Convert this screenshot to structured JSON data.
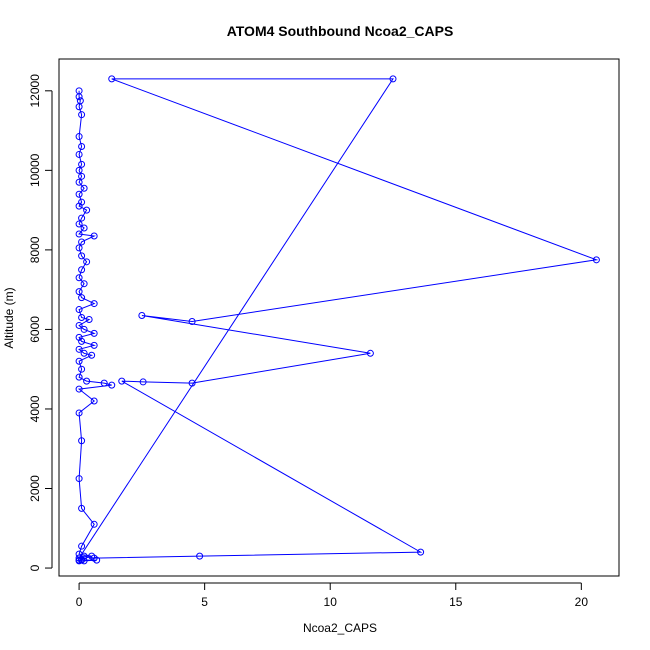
{
  "chart_data": {
    "type": "line",
    "title": "ATOM4 Southbound Ncoa2_CAPS",
    "xlabel": "Ncoa2_CAPS",
    "ylabel": "Altitude (m)",
    "xlim": [
      -0.8,
      21.5
    ],
    "ylim": [
      -200,
      12800
    ],
    "x_ticks": [
      0,
      5,
      10,
      15,
      20
    ],
    "y_ticks": [
      0,
      2000,
      4000,
      6000,
      8000,
      10000,
      12000
    ],
    "grid": false,
    "marker": "open-circle",
    "color": "#0000ff",
    "series": [
      {
        "points": [
          [
            0.0,
            12000
          ],
          [
            0.0,
            11850
          ],
          [
            0.05,
            11750
          ],
          [
            0.0,
            11600
          ],
          [
            0.1,
            11400
          ],
          [
            0.0,
            10850
          ],
          [
            0.1,
            10600
          ],
          [
            0.0,
            10400
          ],
          [
            0.1,
            10150
          ],
          [
            0.0,
            10000
          ],
          [
            0.1,
            9850
          ],
          [
            0.0,
            9700
          ],
          [
            0.2,
            9550
          ],
          [
            0.0,
            9400
          ],
          [
            0.1,
            9200
          ],
          [
            0.0,
            9100
          ],
          [
            0.3,
            9000
          ],
          [
            0.1,
            8800
          ],
          [
            0.0,
            8650
          ],
          [
            0.2,
            8550
          ],
          [
            0.0,
            8400
          ],
          [
            0.6,
            8350
          ],
          [
            0.1,
            8200
          ],
          [
            0.0,
            8050
          ],
          [
            0.1,
            7850
          ],
          [
            0.3,
            7700
          ],
          [
            0.1,
            7500
          ],
          [
            0.0,
            7300
          ],
          [
            0.2,
            7150
          ],
          [
            0.0,
            6950
          ],
          [
            0.1,
            6800
          ],
          [
            0.6,
            6650
          ],
          [
            0.0,
            6500
          ],
          [
            0.1,
            6300
          ],
          [
            0.4,
            6250
          ],
          [
            0.0,
            6100
          ],
          [
            0.2,
            6000
          ],
          [
            0.6,
            5900
          ],
          [
            0.0,
            5800
          ],
          [
            0.1,
            5700
          ],
          [
            0.6,
            5600
          ],
          [
            0.0,
            5500
          ],
          [
            0.2,
            5400
          ],
          [
            0.5,
            5350
          ],
          [
            0.0,
            5200
          ],
          [
            0.1,
            5000
          ],
          [
            0.0,
            4800
          ],
          [
            0.3,
            4700
          ],
          [
            1.0,
            4650
          ],
          [
            1.3,
            4600
          ],
          [
            0.0,
            4500
          ],
          [
            0.6,
            4200
          ],
          [
            0.0,
            3900
          ],
          [
            0.1,
            3200
          ],
          [
            0.0,
            2250
          ],
          [
            0.1,
            1500
          ],
          [
            0.6,
            1100
          ],
          [
            0.1,
            550
          ],
          [
            0.0,
            350
          ],
          [
            0.5,
            300
          ],
          [
            0.0,
            200
          ],
          [
            0.7,
            200
          ],
          [
            0.2,
            180
          ],
          [
            0.1,
            220
          ],
          [
            0.0,
            250
          ],
          [
            12.5,
            12300
          ],
          [
            1.3,
            12300
          ],
          [
            20.6,
            7750
          ],
          [
            4.5,
            6200
          ],
          [
            2.5,
            6350
          ],
          [
            11.6,
            5400
          ],
          [
            4.5,
            4650
          ],
          [
            2.55,
            4680
          ],
          [
            1.7,
            4700
          ],
          [
            13.6,
            400
          ],
          [
            4.8,
            300
          ],
          [
            0.6,
            250
          ],
          [
            0.2,
            300
          ],
          [
            0.1,
            200
          ],
          [
            0.0,
            180
          ]
        ]
      }
    ]
  }
}
